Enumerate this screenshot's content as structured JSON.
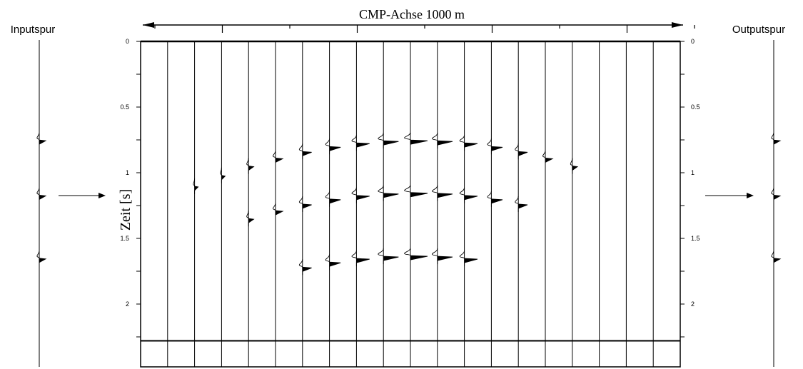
{
  "figure": {
    "input_label": "Inputspur",
    "output_label": "Outputspur",
    "axis_title": "CMP-Achse 1000 m",
    "y_label": "Zeit [s]",
    "time_ticks": [
      {
        "value": 0,
        "label": "0"
      },
      {
        "value": 0.5,
        "label": "0.5"
      },
      {
        "value": 1,
        "label": "1"
      },
      {
        "value": 1.5,
        "label": "1.5"
      },
      {
        "value": 2,
        "label": "2"
      }
    ],
    "time_range_s": [
      0,
      2.45
    ],
    "section_bottom_line_s": 2.28,
    "trace_count": 21,
    "input_trace_events_s": [
      0.74,
      1.16,
      1.64
    ],
    "output_trace_events_s": [
      0.74,
      1.16,
      1.64
    ],
    "reflectors": [
      {
        "apex_trace": 10,
        "apex_time_s": 0.74,
        "moveout_s_per_trace2": 0.0055,
        "trace_range": [
          2,
          16
        ]
      },
      {
        "apex_trace": 10,
        "apex_time_s": 1.14,
        "moveout_s_per_trace2": 0.0055,
        "trace_range": [
          4,
          14
        ]
      },
      {
        "apex_trace": 10,
        "apex_time_s": 1.62,
        "moveout_s_per_trace2": 0.0055,
        "trace_range": [
          6,
          12
        ]
      }
    ],
    "colors": {
      "ink": "#000000",
      "background": "#ffffff"
    }
  }
}
